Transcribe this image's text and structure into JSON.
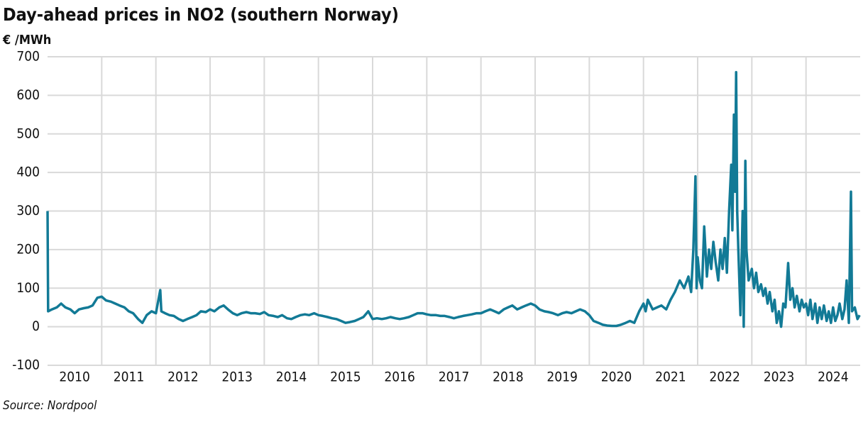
{
  "chart_data": {
    "type": "line",
    "title": "Day-ahead prices in NO2 (southern Norway)",
    "y_label": "€ /MWh",
    "source": "Source: Nordpool",
    "color": "#127a96",
    "grid": true,
    "xlim": [
      2010,
      2025
    ],
    "ylim": [
      -100,
      700
    ],
    "yticks": [
      -100,
      0,
      100,
      200,
      300,
      400,
      500,
      600,
      700
    ],
    "xticks": [
      {
        "value": 2010.5,
        "label": "2010"
      },
      {
        "value": 2011.5,
        "label": "2011"
      },
      {
        "value": 2012.5,
        "label": "2012"
      },
      {
        "value": 2013.5,
        "label": "2013"
      },
      {
        "value": 2014.5,
        "label": "2014"
      },
      {
        "value": 2015.5,
        "label": "2015"
      },
      {
        "value": 2016.5,
        "label": "2016"
      },
      {
        "value": 2017.5,
        "label": "2017"
      },
      {
        "value": 2018.5,
        "label": "2018"
      },
      {
        "value": 2019.5,
        "label": "2019"
      },
      {
        "value": 2020.5,
        "label": "2020"
      },
      {
        "value": 2021.5,
        "label": "2021"
      },
      {
        "value": 2022.5,
        "label": "2022"
      },
      {
        "value": 2023.5,
        "label": "2023"
      },
      {
        "value": 2024.5,
        "label": "2024"
      }
    ],
    "xgrid": [
      2011,
      2012,
      2013,
      2014,
      2015,
      2016,
      2017,
      2018,
      2019,
      2020,
      2021,
      2022,
      2023,
      2024
    ],
    "x": [
      2010.0,
      2010.01,
      2010.08,
      2010.17,
      2010.25,
      2010.33,
      2010.42,
      2010.5,
      2010.58,
      2010.67,
      2010.75,
      2010.83,
      2010.92,
      2011.0,
      2011.08,
      2011.17,
      2011.25,
      2011.33,
      2011.42,
      2011.5,
      2011.58,
      2011.67,
      2011.75,
      2011.83,
      2011.92,
      2012.0,
      2012.08,
      2012.1,
      2012.17,
      2012.25,
      2012.33,
      2012.42,
      2012.5,
      2012.58,
      2012.67,
      2012.75,
      2012.83,
      2012.92,
      2013.0,
      2013.08,
      2013.17,
      2013.25,
      2013.33,
      2013.42,
      2013.5,
      2013.58,
      2013.67,
      2013.75,
      2013.83,
      2013.92,
      2014.0,
      2014.08,
      2014.17,
      2014.25,
      2014.33,
      2014.42,
      2014.5,
      2014.58,
      2014.67,
      2014.75,
      2014.83,
      2014.92,
      2015.0,
      2015.08,
      2015.17,
      2015.25,
      2015.33,
      2015.42,
      2015.5,
      2015.58,
      2015.67,
      2015.75,
      2015.83,
      2015.92,
      2016.0,
      2016.08,
      2016.17,
      2016.25,
      2016.33,
      2016.42,
      2016.5,
      2016.58,
      2016.67,
      2016.75,
      2016.83,
      2016.92,
      2017.0,
      2017.08,
      2017.17,
      2017.25,
      2017.33,
      2017.42,
      2017.5,
      2017.58,
      2017.67,
      2017.75,
      2017.83,
      2017.92,
      2018.0,
      2018.08,
      2018.17,
      2018.25,
      2018.33,
      2018.42,
      2018.5,
      2018.58,
      2018.67,
      2018.75,
      2018.83,
      2018.92,
      2019.0,
      2019.08,
      2019.17,
      2019.25,
      2019.33,
      2019.42,
      2019.5,
      2019.58,
      2019.67,
      2019.75,
      2019.83,
      2019.92,
      2020.0,
      2020.08,
      2020.17,
      2020.25,
      2020.33,
      2020.42,
      2020.5,
      2020.58,
      2020.67,
      2020.75,
      2020.83,
      2020.92,
      2021.0,
      2021.04,
      2021.08,
      2021.17,
      2021.25,
      2021.33,
      2021.42,
      2021.5,
      2021.58,
      2021.67,
      2021.75,
      2021.83,
      2021.88,
      2021.92,
      2021.96,
      2021.98,
      2022.0,
      2022.04,
      2022.08,
      2022.12,
      2022.17,
      2022.21,
      2022.25,
      2022.29,
      2022.33,
      2022.38,
      2022.42,
      2022.46,
      2022.5,
      2022.54,
      2022.58,
      2022.62,
      2022.64,
      2022.67,
      2022.69,
      2022.71,
      2022.73,
      2022.75,
      2022.79,
      2022.83,
      2022.85,
      2022.88,
      2022.9,
      2022.94,
      2023.0,
      2023.04,
      2023.08,
      2023.12,
      2023.17,
      2023.21,
      2023.25,
      2023.29,
      2023.33,
      2023.38,
      2023.42,
      2023.46,
      2023.5,
      2023.54,
      2023.58,
      2023.62,
      2023.67,
      2023.71,
      2023.75,
      2023.79,
      2023.83,
      2023.88,
      2023.92,
      2023.96,
      2024.0,
      2024.04,
      2024.08,
      2024.12,
      2024.17,
      2024.21,
      2024.25,
      2024.29,
      2024.33,
      2024.38,
      2024.42,
      2024.46,
      2024.5,
      2024.54,
      2024.58,
      2024.62,
      2024.67,
      2024.71,
      2024.75,
      2024.79,
      2024.83,
      2024.85,
      2024.9,
      2024.95,
      2024.99
    ],
    "values": [
      300,
      40,
      45,
      50,
      60,
      50,
      45,
      35,
      45,
      48,
      50,
      55,
      75,
      78,
      68,
      65,
      60,
      55,
      50,
      40,
      35,
      20,
      10,
      30,
      40,
      35,
      95,
      40,
      35,
      30,
      28,
      20,
      15,
      20,
      25,
      30,
      40,
      38,
      45,
      40,
      50,
      55,
      45,
      35,
      30,
      35,
      38,
      35,
      35,
      33,
      38,
      30,
      28,
      25,
      30,
      22,
      20,
      25,
      30,
      32,
      30,
      35,
      30,
      28,
      25,
      22,
      20,
      15,
      10,
      12,
      15,
      20,
      25,
      40,
      20,
      22,
      20,
      22,
      25,
      22,
      20,
      22,
      25,
      30,
      35,
      35,
      32,
      30,
      30,
      28,
      28,
      25,
      22,
      25,
      28,
      30,
      32,
      35,
      35,
      40,
      45,
      40,
      35,
      45,
      50,
      55,
      45,
      50,
      55,
      60,
      55,
      45,
      40,
      38,
      35,
      30,
      35,
      38,
      35,
      40,
      45,
      40,
      30,
      15,
      10,
      5,
      3,
      2,
      2,
      5,
      10,
      15,
      10,
      40,
      60,
      40,
      70,
      45,
      50,
      55,
      45,
      70,
      90,
      120,
      100,
      130,
      90,
      200,
      390,
      100,
      180,
      120,
      100,
      260,
      130,
      200,
      150,
      220,
      170,
      120,
      200,
      150,
      230,
      140,
      300,
      420,
      250,
      550,
      350,
      660,
      300,
      200,
      30,
      300,
      0,
      430,
      200,
      120,
      150,
      100,
      140,
      90,
      110,
      80,
      100,
      60,
      90,
      40,
      70,
      10,
      40,
      0,
      60,
      50,
      165,
      70,
      100,
      50,
      80,
      40,
      70,
      50,
      60,
      30,
      70,
      20,
      60,
      10,
      50,
      20,
      55,
      15,
      40,
      10,
      50,
      15,
      30,
      60,
      20,
      45,
      120,
      10,
      350,
      40,
      50,
      20,
      30
    ]
  }
}
